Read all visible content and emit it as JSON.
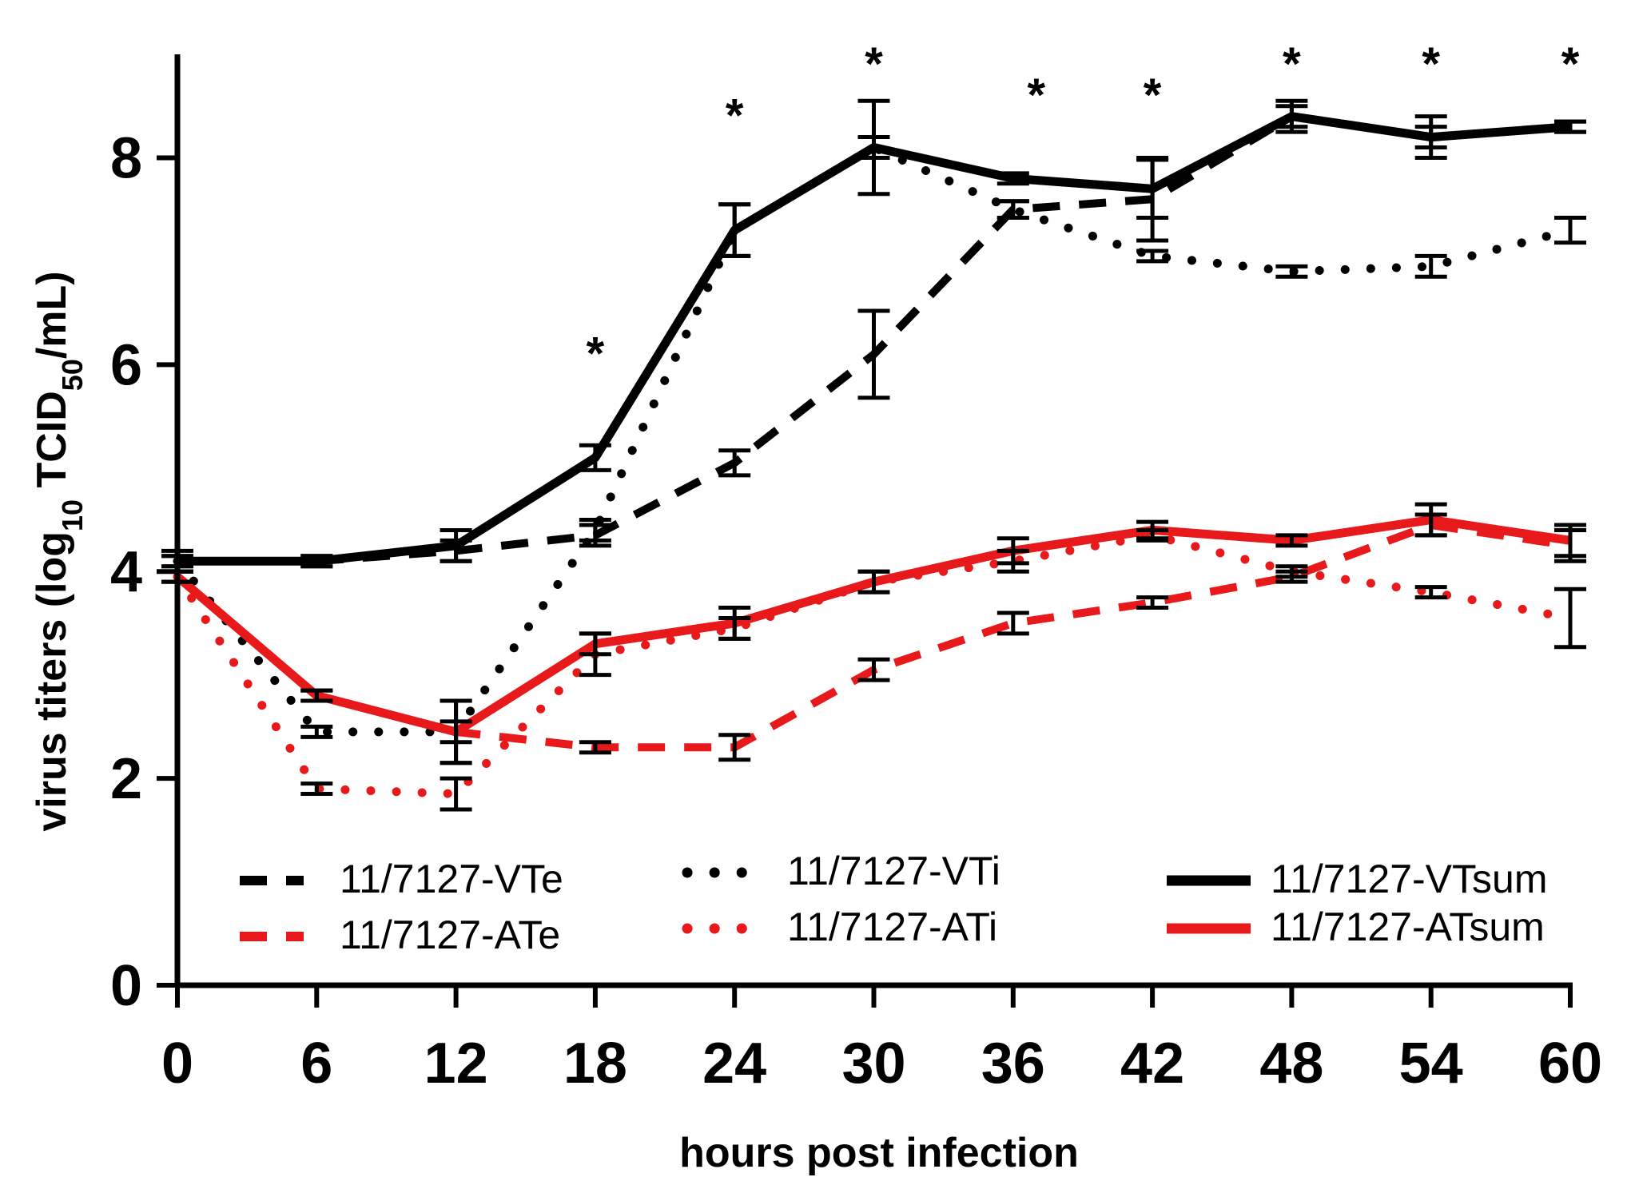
{
  "chart_data": {
    "type": "line",
    "title": "",
    "xlabel": "hours post infection",
    "ylabel_main": "virus titers (log",
    "ylabel_sub1": "10",
    "ylabel_mid": " TCID",
    "ylabel_sub2": "50",
    "ylabel_end": "/mL)",
    "xlim": [
      0,
      60
    ],
    "ylim": [
      0,
      9
    ],
    "xticks": [
      0,
      6,
      12,
      18,
      24,
      30,
      36,
      42,
      48,
      54,
      60
    ],
    "yticks": [
      0,
      2,
      4,
      6,
      8
    ],
    "grid": false,
    "legend_position": "bottom",
    "significance_symbol": "*",
    "significance_x": [
      18,
      24,
      30,
      37,
      42,
      48,
      54,
      60
    ],
    "significance_y": [
      6.2,
      8.5,
      9.0,
      8.7,
      8.7,
      9.0,
      9.0,
      9.0
    ],
    "x": [
      0,
      6,
      12,
      18,
      24,
      30,
      36,
      42,
      48,
      54,
      60
    ],
    "series": [
      {
        "name": "11/7127-VTe",
        "color": "#000000",
        "dash": "dashed",
        "values": [
          4.1,
          4.1,
          4.2,
          4.35,
          5.05,
          6.1,
          7.5,
          7.6,
          8.4,
          8.2,
          8.3
        ],
        "errors": [
          0.1,
          0.05,
          0.1,
          0.1,
          0.12,
          0.42,
          0.08,
          0.4,
          0.1,
          0.1,
          0.05
        ]
      },
      {
        "name": "11/7127-ATe",
        "color": "#e8191b",
        "dash": "dashed",
        "values": [
          3.95,
          2.8,
          2.45,
          2.3,
          2.3,
          3.05,
          3.5,
          3.7,
          3.95,
          4.45,
          4.25
        ],
        "errors": [
          0.05,
          0.05,
          0.1,
          0.05,
          0.12,
          0.1,
          0.1,
          0.05,
          0.05,
          0.1,
          0.15
        ]
      },
      {
        "name": "11/7127-VTi",
        "color": "#000000",
        "dash": "dotted",
        "values": [
          4.1,
          2.45,
          2.45,
          4.4,
          7.3,
          8.1,
          7.5,
          7.05,
          6.9,
          6.95,
          7.3
        ],
        "errors": [
          0.05,
          0.05,
          0.3,
          0.1,
          0.25,
          0.1,
          0.08,
          0.05,
          0.05,
          0.1,
          0.12
        ]
      },
      {
        "name": "11/7127-ATi",
        "color": "#e8191b",
        "dash": "dotted",
        "values": [
          3.95,
          1.9,
          1.85,
          3.2,
          3.45,
          3.9,
          4.1,
          4.35,
          4.0,
          3.8,
          3.55
        ],
        "errors": [
          0.05,
          0.05,
          0.15,
          0.2,
          0.1,
          0.1,
          0.1,
          0.05,
          0.05,
          0.05,
          0.28
        ]
      },
      {
        "name": "11/7127-VTsum",
        "color": "#000000",
        "dash": "solid",
        "values": [
          4.1,
          4.1,
          4.25,
          5.1,
          7.3,
          8.1,
          7.8,
          7.7,
          8.4,
          8.2,
          8.3
        ],
        "errors": [
          0.05,
          0.05,
          0.15,
          0.12,
          0.25,
          0.45,
          0.05,
          0.28,
          0.15,
          0.2,
          0.05
        ]
      },
      {
        "name": "11/7127-ATsum",
        "color": "#e8191b",
        "dash": "solid",
        "values": [
          3.95,
          2.8,
          2.45,
          3.3,
          3.5,
          3.9,
          4.2,
          4.4,
          4.3,
          4.5,
          4.3
        ],
        "errors": [
          0.05,
          0.05,
          0.3,
          0.1,
          0.15,
          0.1,
          0.12,
          0.08,
          0.05,
          0.15,
          0.15
        ]
      }
    ]
  }
}
